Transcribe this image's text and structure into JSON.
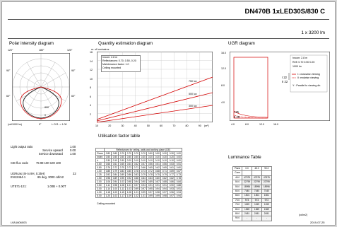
{
  "header": {
    "title": "DN470B 1xLED30S/830 C",
    "subtitle": "1 x 3200 lm"
  },
  "polar": {
    "title": "Polar intensity diagram",
    "angle_labels_top": [
      "120°",
      "180°",
      "120°"
    ],
    "angle_labels_side": [
      "90°",
      "60°",
      "90°",
      "60°"
    ],
    "ring_values": [
      "800",
      "600",
      "400",
      "200",
      "0"
    ],
    "bottom_labels": [
      "(cd/1000 lm)",
      "0°",
      "L.O.R. = 1.00"
    ],
    "plane_labels": [
      "C0 - C180",
      "C90 - C270"
    ],
    "colors": {
      "c0": "#000000",
      "c90": "#d40000"
    }
  },
  "quantity": {
    "title": "Quantity estimation diagram",
    "y_label": "nr. of luminaires",
    "info": [
      "hroom: 2.8 m",
      "Reflectances: 0.70, 0.50, 0.20",
      "Maintenance factor: 1.0",
      "Ceiling mounted"
    ],
    "y_ticks": [
      "16",
      "14",
      "12",
      "10",
      "8",
      "6",
      "4",
      "2"
    ],
    "x_ticks": [
      "10",
      "20",
      "30",
      "40",
      "50",
      "60",
      "70",
      "80",
      "90"
    ],
    "x_unit": "(m²)",
    "line_labels": [
      "750 lux",
      "500 lux",
      "300 lux"
    ]
  },
  "ugr": {
    "title": "UGR diagram",
    "y_ticks": [
      "16.0",
      "12.0",
      "8.0",
      "4.0"
    ],
    "x_ticks": [
      "4.0",
      "8.0",
      "12.0",
      "16.0"
    ],
    "legend": [
      "hroom: 2.8 m",
      "Refl: 0.70 0.50 0.20",
      "1000 lm",
      "I: crosswise viewing",
      "II: endwise viewing",
      "",
      "Y : Parallel to viewing dir."
    ],
    "markers": [
      "I 22",
      "II 22",
      "I 25",
      "II 25"
    ]
  },
  "notes": {
    "light_output_ratio_label": "Light output ratio",
    "light_output_ratio": "1.00",
    "service_upward_label": "Service upward",
    "service_upward": "0.00",
    "service_downward_label": "Service downward",
    "service_downward": "1.00",
    "cie_label": "CIE flux code",
    "cie": "75  99  100  100  100",
    "ugr_label": "UGRcas (4H x 8H, 0.25H)",
    "ugr": "22",
    "en_label": "EN12464-1",
    "en": "65 deg. 3000 cd/m2",
    "ute_label": "UTE71-121:",
    "ute": "1.00B + 0.00T",
    "footer_left": "LVA1606003",
    "footer_right": "2019-07-25"
  },
  "utilisation": {
    "title": "Utilisation factor table",
    "header": "Reflectances for ceiling, walls and working plane (CIE)",
    "row_head": [
      "Room",
      "Index",
      "k"
    ],
    "refl_rows": [
      [
        "0.80",
        "0.80",
        "0.70",
        "0.70",
        "0.70",
        "0.70",
        "0.50",
        "0.50",
        "0.30",
        "0.30",
        "0.00"
      ],
      [
        "0.50",
        "0.50",
        "0.50",
        "0.50",
        "0.50",
        "0.30",
        "0.30",
        "0.30",
        "0.30",
        "0.20",
        "0.00"
      ],
      [
        "0.30",
        "0.10",
        "0.30",
        "0.20",
        "0.10",
        "0.10",
        "0.10",
        "0.10",
        "0.10",
        "0.10",
        "0.00"
      ]
    ],
    "k": [
      "0.60",
      "0.80",
      "1.00",
      "1.25",
      "1.50",
      "2.00",
      "2.50",
      "3.00",
      "4.00",
      "5.00"
    ],
    "rows": [
      [
        "0.66",
        "0.61",
        "0.65",
        "0.64",
        "0.62",
        "0.57",
        "0.56",
        "0.51",
        "0.56",
        "0.53",
        "0.51"
      ],
      [
        "0.76",
        "0.72",
        "0.75",
        "0.73",
        "0.71",
        "0.66",
        "0.65",
        "0.62",
        "0.65",
        "0.61",
        "0.60"
      ],
      [
        "0.85",
        "0.79",
        "0.83",
        "0.80",
        "0.78",
        "0.73",
        "0.72",
        "0.68",
        "0.71",
        "0.69",
        "0.67"
      ],
      [
        "0.92",
        "0.84",
        "0.89",
        "0.86",
        "0.83",
        "0.79",
        "0.78",
        "0.75",
        "0.79",
        "0.77",
        "0.73"
      ],
      [
        "0.98",
        "0.89",
        "0.95",
        "0.92",
        "0.88",
        "0.84",
        "0.83",
        "0.80",
        "0.82",
        "0.82",
        "0.78"
      ],
      [
        "1.06",
        "0.94",
        "1.03",
        "0.98",
        "0.94",
        "0.90",
        "0.89",
        "0.87",
        "0.88",
        "0.86",
        "0.84"
      ],
      [
        "1.11",
        "0.98",
        "1.08",
        "1.01",
        "0.97",
        "0.94",
        "0.91",
        "0.91",
        "0.91",
        "0.90",
        "0.88"
      ],
      [
        "1.14",
        "1.00",
        "1.11",
        "1.03",
        "0.99",
        "0.97",
        "0.95",
        "0.94",
        "0.94",
        "0.93",
        "0.91"
      ],
      [
        "1.18",
        "1.03",
        "1.15",
        "1.08",
        "1.01",
        "0.99",
        "0.97",
        "0.98",
        "0.97",
        "0.96",
        "0.94"
      ],
      [
        "1.20",
        "1.03",
        "1.17",
        "1.09",
        "1.02",
        "1.01",
        "0.99",
        "0.99",
        "0.98",
        "0.97",
        "0.94"
      ]
    ],
    "footer": "Ceiling mounted"
  },
  "luminance": {
    "title": "Luminance Table",
    "head": [
      "Plane",
      "0.0",
      "45.0",
      "90.0"
    ],
    "head2": "Cone",
    "rows": [
      [
        "45.0",
        "47575",
        "47575",
        "47575"
      ],
      [
        "50.0",
        "22799",
        "22799",
        "22799"
      ],
      [
        "55.0",
        "18996",
        "18996",
        "18996"
      ],
      [
        "60.0",
        "7440",
        "7440",
        "7440"
      ],
      [
        "65.0",
        "1501",
        "1501",
        "1501"
      ],
      [
        "70.0",
        "973",
        "973",
        "973"
      ],
      [
        "75.0",
        "1159",
        "1159",
        "1159"
      ],
      [
        "80.0",
        "1569",
        "1569",
        "1569"
      ],
      [
        "85.0",
        "2451",
        "2451",
        "2451"
      ],
      [
        "90.0",
        "-",
        "-",
        "-"
      ]
    ],
    "unit": "(cd/m2)"
  }
}
